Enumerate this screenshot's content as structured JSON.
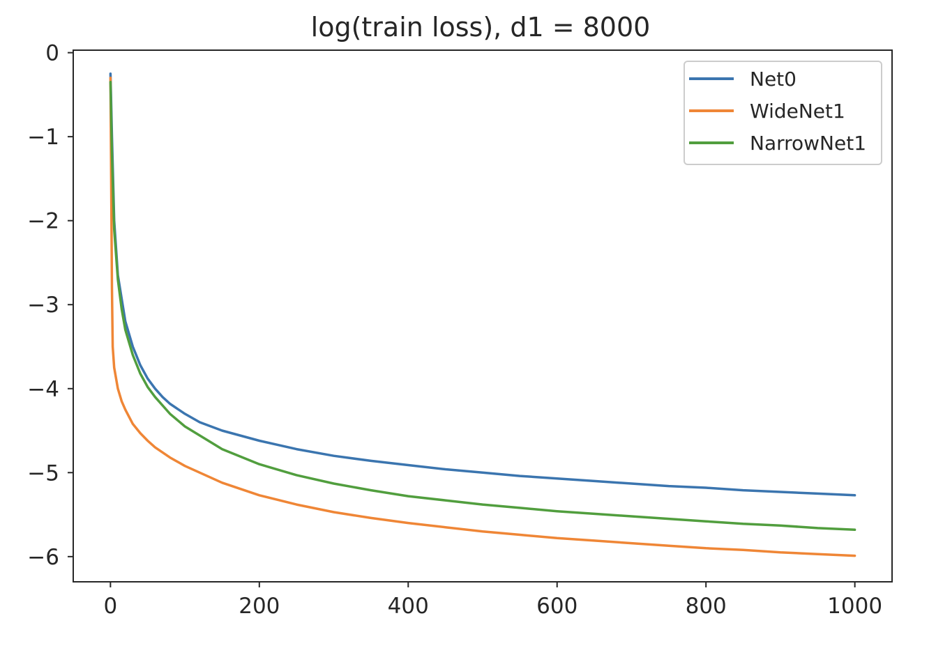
{
  "chart_data": {
    "type": "line",
    "title": "log(train loss), d1 = 8000",
    "xlabel": "",
    "ylabel": "",
    "xlim": [
      -50,
      1050
    ],
    "ylim": [
      -6.3,
      0.03
    ],
    "xticks": [
      0,
      200,
      400,
      600,
      800,
      1000
    ],
    "xtick_labels": [
      "0",
      "200",
      "400",
      "600",
      "800",
      "1000"
    ],
    "yticks": [
      0,
      -1,
      -2,
      -3,
      -4,
      -5,
      -6
    ],
    "ytick_labels": [
      "0",
      "−1",
      "−2",
      "−3",
      "−4",
      "−5",
      "−6"
    ],
    "grid": false,
    "legend_position": "top-right",
    "series": [
      {
        "name": "Net0",
        "color": "#3b75af",
        "x": [
          0,
          2,
          5,
          10,
          20,
          30,
          40,
          50,
          60,
          70,
          80,
          100,
          120,
          150,
          200,
          250,
          300,
          350,
          400,
          450,
          500,
          550,
          600,
          650,
          700,
          750,
          800,
          850,
          900,
          950,
          1000
        ],
        "y": [
          -0.25,
          -1.0,
          -2.0,
          -2.65,
          -3.2,
          -3.5,
          -3.72,
          -3.88,
          -4.0,
          -4.1,
          -4.18,
          -4.3,
          -4.4,
          -4.5,
          -4.62,
          -4.72,
          -4.8,
          -4.86,
          -4.91,
          -4.96,
          -5.0,
          -5.04,
          -5.07,
          -5.1,
          -5.13,
          -5.16,
          -5.18,
          -5.21,
          -5.23,
          -5.25,
          -5.27
        ]
      },
      {
        "name": "WideNet1",
        "color": "#ef8636",
        "x": [
          0,
          1,
          2,
          3,
          5,
          10,
          15,
          20,
          30,
          40,
          50,
          60,
          80,
          100,
          150,
          200,
          250,
          300,
          350,
          400,
          450,
          500,
          550,
          600,
          650,
          700,
          750,
          800,
          850,
          900,
          950,
          1000
        ],
        "y": [
          -0.3,
          -1.5,
          -2.8,
          -3.5,
          -3.75,
          -4.0,
          -4.15,
          -4.25,
          -4.42,
          -4.53,
          -4.62,
          -4.7,
          -4.82,
          -4.92,
          -5.12,
          -5.27,
          -5.38,
          -5.47,
          -5.54,
          -5.6,
          -5.65,
          -5.7,
          -5.74,
          -5.78,
          -5.81,
          -5.84,
          -5.87,
          -5.9,
          -5.92,
          -5.95,
          -5.97,
          -5.99
        ]
      },
      {
        "name": "NarrowNet1",
        "color": "#519e3e",
        "x": [
          0,
          2,
          5,
          10,
          15,
          20,
          30,
          40,
          50,
          60,
          80,
          100,
          150,
          200,
          250,
          300,
          350,
          400,
          450,
          500,
          550,
          600,
          650,
          700,
          750,
          800,
          850,
          900,
          950,
          1000
        ],
        "y": [
          -0.35,
          -1.2,
          -2.1,
          -2.7,
          -3.05,
          -3.3,
          -3.6,
          -3.82,
          -3.98,
          -4.1,
          -4.3,
          -4.45,
          -4.72,
          -4.9,
          -5.03,
          -5.13,
          -5.21,
          -5.28,
          -5.33,
          -5.38,
          -5.42,
          -5.46,
          -5.49,
          -5.52,
          -5.55,
          -5.58,
          -5.61,
          -5.63,
          -5.66,
          -5.68
        ]
      }
    ]
  }
}
